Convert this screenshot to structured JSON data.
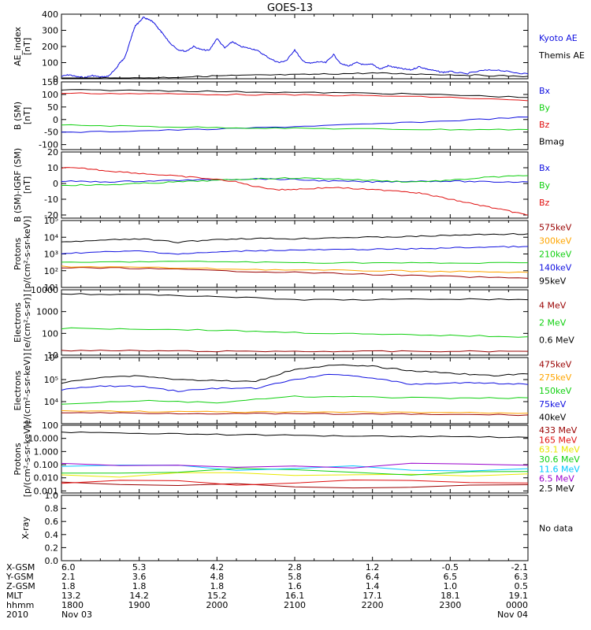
{
  "title": "GOES-13",
  "colors": {
    "black": "#000000",
    "blue": "#1010e0",
    "red": "#e01010",
    "green": "#10d010",
    "orange": "#ffa500",
    "dark_red": "#990000",
    "magenta": "#9900cc",
    "cyan": "#00c8ff",
    "yellow": "#e8e800"
  },
  "x_axis": {
    "start": "1800",
    "end": "0000",
    "tick_rows": [
      {
        "label": "X-GSM",
        "values": [
          "6.0",
          "5.3",
          "4.2",
          "2.8",
          "1.2",
          "-0.5",
          "-2.1"
        ]
      },
      {
        "label": "Y-GSM",
        "values": [
          "2.1",
          "3.6",
          "4.8",
          "5.8",
          "6.4",
          "6.5",
          "6.3"
        ]
      },
      {
        "label": "Z-GSM",
        "values": [
          "1.8",
          "1.8",
          "1.8",
          "1.6",
          "1.4",
          "1.0",
          "0.5"
        ]
      },
      {
        "label": "MLT",
        "values": [
          "13.2",
          "14.2",
          "15.2",
          "16.1",
          "17.1",
          "18.1",
          "19.1"
        ]
      },
      {
        "label": "hhmm",
        "values": [
          "1800",
          "1900",
          "2000",
          "2100",
          "2200",
          "2300",
          "0000"
        ]
      },
      {
        "label": "2010",
        "values": [
          "Nov 03",
          "",
          "",
          "",
          "",
          "",
          "Nov 04"
        ]
      }
    ]
  },
  "chart_data": [
    {
      "type": "line",
      "ylabel": [
        "AE_index",
        "[nT]"
      ],
      "ylim": [
        0,
        400
      ],
      "yticks": [
        0,
        100,
        200,
        300,
        400
      ],
      "ytick_labels": [
        "0",
        "100",
        "200",
        "300",
        "400"
      ],
      "series": [
        {
          "name": "Kyoto AE",
          "color": "blue",
          "x": [
            0,
            0.1,
            0.2,
            0.3,
            0.4,
            0.5,
            0.6,
            0.7,
            0.75,
            0.8,
            0.85,
            0.9,
            0.95,
            1.0,
            1.05,
            1.1,
            1.15,
            1.2,
            1.25,
            1.3,
            1.35,
            1.4,
            1.5,
            1.6,
            1.7,
            1.8,
            1.9,
            2.0,
            2.1,
            2.2,
            2.3,
            2.4,
            2.5,
            2.6,
            2.7,
            2.8,
            2.9,
            3.0,
            3.1,
            3.2,
            3.3,
            3.4,
            3.5,
            3.6,
            3.7,
            3.8,
            3.9,
            4.0,
            4.1,
            4.2,
            4.3,
            4.4,
            4.5,
            4.6,
            4.7,
            4.8,
            4.9,
            5.0,
            5.2,
            5.4,
            5.6,
            5.8,
            6.0
          ],
          "y": [
            15,
            25,
            12,
            8,
            20,
            10,
            15,
            60,
            100,
            120,
            180,
            260,
            330,
            350,
            380,
            370,
            360,
            340,
            310,
            280,
            250,
            220,
            180,
            170,
            200,
            180,
            175,
            250,
            190,
            230,
            200,
            190,
            180,
            150,
            120,
            100,
            115,
            180,
            110,
            95,
            105,
            100,
            150,
            90,
            80,
            100,
            85,
            90,
            60,
            80,
            70,
            60,
            55,
            75,
            60,
            50,
            40,
            45,
            30,
            50,
            55,
            40,
            30
          ]
        },
        {
          "name": "Themis AE",
          "color": "black",
          "x": [
            0,
            0.5,
            1.0,
            1.5,
            2.0,
            2.5,
            3.0,
            3.5,
            4.0,
            4.5,
            5.0,
            5.5,
            6.0
          ],
          "y": [
            2,
            3,
            5,
            10,
            18,
            22,
            25,
            30,
            35,
            30,
            25,
            20,
            15
          ]
        }
      ]
    },
    {
      "type": "line",
      "ylabel": [
        "B (SM)",
        "[nT]"
      ],
      "ylim": [
        -120,
        150
      ],
      "yticks": [
        -100,
        -50,
        0,
        50,
        100,
        150
      ],
      "ytick_labels": [
        "-100",
        "-50",
        "0",
        "50",
        "100",
        "150"
      ],
      "series": [
        {
          "name": "Bx",
          "color": "blue",
          "x": [
            0,
            1,
            2,
            3,
            4,
            5,
            6
          ],
          "y": [
            -52,
            -45,
            -38,
            -28,
            -18,
            -5,
            10
          ]
        },
        {
          "name": "By",
          "color": "green",
          "x": [
            0,
            1,
            2,
            3,
            4,
            5,
            6
          ],
          "y": [
            -22,
            -27,
            -32,
            -35,
            -38,
            -40,
            -40
          ]
        },
        {
          "name": "Bz",
          "color": "red",
          "x": [
            0,
            1,
            2,
            3,
            4,
            5,
            6
          ],
          "y": [
            105,
            103,
            100,
            98,
            95,
            88,
            75
          ]
        },
        {
          "name": "Bmag",
          "color": "black",
          "x": [
            0,
            1,
            2,
            3,
            4,
            5,
            6
          ],
          "y": [
            118,
            116,
            112,
            108,
            105,
            98,
            88
          ]
        }
      ]
    },
    {
      "type": "line",
      "ylabel": [
        "B (SM)-IGRF (SM)",
        "[nT]"
      ],
      "ylim": [
        -22,
        20
      ],
      "yticks": [
        -20,
        -10,
        0,
        10,
        20
      ],
      "ytick_labels": [
        "-20",
        "-10",
        "0",
        "10",
        "20"
      ],
      "series": [
        {
          "name": "Bx",
          "color": "blue",
          "x": [
            0,
            0.5,
            1.0,
            1.5,
            2.0,
            2.5,
            3.0,
            3.5,
            4.0,
            4.5,
            5.0,
            5.5,
            6.0
          ],
          "y": [
            1.5,
            1,
            1.5,
            2,
            2.5,
            3,
            2.5,
            1.5,
            1,
            1.5,
            1.5,
            1,
            1
          ]
        },
        {
          "name": "By",
          "color": "green",
          "x": [
            0,
            0.5,
            1.0,
            1.5,
            2.0,
            2.5,
            3.0,
            3.5,
            4.0,
            4.5,
            5.0,
            5.5,
            6.0
          ],
          "y": [
            -1,
            -1,
            0,
            1,
            2,
            3,
            3.5,
            3,
            2,
            1,
            2,
            4,
            5
          ]
        },
        {
          "name": "Bz",
          "color": "red",
          "x": [
            0,
            0.3,
            0.6,
            1.0,
            1.4,
            1.8,
            2.2,
            2.5,
            2.8,
            3.1,
            3.5,
            4.0,
            4.3,
            4.6,
            4.9,
            5.2,
            5.5,
            5.8,
            6.0
          ],
          "y": [
            10,
            9.5,
            8,
            6.5,
            5,
            3.5,
            1.5,
            -2,
            -4,
            -3.5,
            -2.5,
            -4,
            -4.5,
            -6,
            -9,
            -12,
            -15,
            -18,
            -20
          ]
        }
      ]
    },
    {
      "type": "line",
      "yscale": "log",
      "ylabel": [
        "Protons",
        "[p/(cm²-s-sr-keV)]"
      ],
      "ylim": [
        10,
        100000
      ],
      "yticks": [
        10,
        100,
        1000,
        10000,
        100000
      ],
      "ytick_labels": [
        "10¹",
        "10²",
        "10³",
        "10⁴",
        "10⁵"
      ],
      "series": [
        {
          "name": "575keV",
          "color": "dark_red",
          "x": [
            0,
            1,
            2,
            3,
            4,
            5,
            6
          ],
          "y": [
            150,
            140,
            100,
            80,
            60,
            45,
            35
          ]
        },
        {
          "name": "300keV",
          "color": "orange",
          "x": [
            0,
            1,
            2,
            3,
            4,
            5,
            6
          ],
          "y": [
            180,
            160,
            130,
            110,
            100,
            90,
            80
          ]
        },
        {
          "name": "210keV",
          "color": "green",
          "x": [
            0,
            1,
            2,
            3,
            4,
            5,
            6
          ],
          "y": [
            300,
            350,
            350,
            300,
            300,
            280,
            300
          ]
        },
        {
          "name": "140keV",
          "color": "blue",
          "x": [
            0,
            0.5,
            1.0,
            1.5,
            2.0,
            2.5,
            3.0,
            3.5,
            4.0,
            4.5,
            5.0,
            5.5,
            6.0
          ],
          "y": [
            1100,
            1300,
            1500,
            1000,
            1300,
            1600,
            1700,
            1800,
            1900,
            2000,
            2300,
            2600,
            2800
          ]
        },
        {
          "name": "95keV",
          "color": "black",
          "x": [
            0,
            0.5,
            1.0,
            1.5,
            2.0,
            2.5,
            3.0,
            3.5,
            4.0,
            4.5,
            5.0,
            5.5,
            6.0
          ],
          "y": [
            5000,
            6500,
            8000,
            5000,
            7500,
            8500,
            8000,
            9500,
            10000,
            11000,
            13000,
            15000,
            16000
          ]
        }
      ]
    },
    {
      "type": "line",
      "yscale": "log",
      "ylabel": [
        "Electrons",
        "[e/(cm²-s-sr)]"
      ],
      "ylim": [
        10,
        10000
      ],
      "yticks": [
        10,
        100,
        1000,
        10000
      ],
      "ytick_labels": [
        "10",
        "100",
        "1000",
        "10000"
      ],
      "series": [
        {
          "name": "4 MeV",
          "color": "dark_red",
          "x": [
            0,
            1,
            2,
            3,
            4,
            5,
            6
          ],
          "y": [
            16,
            16,
            15,
            15,
            15,
            15,
            15
          ]
        },
        {
          "name": "2 MeV",
          "color": "green",
          "x": [
            0,
            1,
            2,
            3,
            4,
            5,
            6
          ],
          "y": [
            170,
            160,
            140,
            110,
            90,
            80,
            70
          ]
        },
        {
          "name": "0.6 MeV",
          "color": "black",
          "x": [
            0,
            1,
            2,
            3,
            4,
            5,
            6
          ],
          "y": [
            6500,
            6000,
            5000,
            3500,
            3500,
            3800,
            3500
          ]
        }
      ]
    },
    {
      "type": "line",
      "yscale": "log",
      "ylabel": [
        "Electrons",
        "[e/(cm²-s-sr-keV)]"
      ],
      "ylim": [
        1000,
        1000000
      ],
      "yticks": [
        10000,
        100000,
        1000000
      ],
      "ytick_labels": [
        "10⁴",
        "10⁵",
        "10⁶"
      ],
      "series": [
        {
          "name": "475keV",
          "color": "dark_red",
          "x": [
            0,
            1,
            2,
            3,
            4,
            5,
            6
          ],
          "y": [
            3200,
            3000,
            2900,
            2800,
            2700,
            2600,
            2500
          ]
        },
        {
          "name": "275keV",
          "color": "orange",
          "x": [
            0,
            1,
            2,
            3,
            4,
            5,
            6
          ],
          "y": [
            3800,
            3600,
            3400,
            3300,
            3300,
            3200,
            3000
          ]
        },
        {
          "name": "150keV",
          "color": "green",
          "x": [
            0,
            1,
            2,
            3,
            4,
            5,
            6
          ],
          "y": [
            8000,
            11000,
            9000,
            17000,
            16000,
            14000,
            15000
          ]
        },
        {
          "name": "75keV",
          "color": "blue",
          "x": [
            0,
            0.5,
            1.0,
            1.5,
            2.0,
            2.5,
            3.0,
            3.5,
            4.0,
            4.5,
            5.0,
            5.5,
            6.0
          ],
          "y": [
            35000,
            50000,
            50000,
            30000,
            40000,
            40000,
            100000,
            180000,
            120000,
            60000,
            70000,
            70000,
            60000
          ]
        },
        {
          "name": "40keV",
          "color": "black",
          "x": [
            0,
            0.5,
            1.0,
            1.5,
            2.0,
            2.5,
            3.0,
            3.5,
            4.0,
            4.5,
            5.0,
            5.5,
            6.0
          ],
          "y": [
            70000,
            130000,
            150000,
            100000,
            90000,
            80000,
            300000,
            450000,
            400000,
            250000,
            200000,
            150000,
            180000
          ]
        }
      ]
    },
    {
      "type": "line",
      "yscale": "log",
      "ylabel": [
        "Protons",
        "[p/(cm²-s-sr-keV)]"
      ],
      "ylim": [
        0.0007,
        100
      ],
      "yticks": [
        0.001,
        0.01,
        0.1,
        1,
        10,
        100
      ],
      "ytick_labels": [
        "0.001",
        "0.010",
        "0.100",
        "1.000",
        "10.000",
        "100"
      ],
      "series": [
        {
          "name": "433 MeV",
          "color": "dark_red",
          "x": [
            0,
            6
          ],
          "y": [
            0.003,
            0.003
          ]
        },
        {
          "name": "165 MeV",
          "color": "red",
          "x": [
            0,
            6
          ],
          "y": [
            0.004,
            0.004
          ]
        },
        {
          "name": "63.1 MeV",
          "color": "yellow",
          "x": [
            0,
            6
          ],
          "y": [
            0.02,
            0.02
          ]
        },
        {
          "name": "30.6 MeV",
          "color": "green",
          "x": [
            0,
            6
          ],
          "y": [
            0.03,
            0.03
          ]
        },
        {
          "name": "11.6 MeV",
          "color": "cyan",
          "x": [
            0,
            6
          ],
          "y": [
            0.05,
            0.05
          ]
        },
        {
          "name": "6.5 MeV",
          "color": "magenta",
          "x": [
            0,
            6
          ],
          "y": [
            0.09,
            0.09
          ]
        },
        {
          "name": "2.5 MeV",
          "color": "black",
          "x": [
            0,
            1,
            2,
            3,
            4,
            5,
            6
          ],
          "y": [
            30,
            25,
            20,
            17,
            15,
            14,
            12
          ]
        }
      ]
    },
    {
      "type": "line",
      "ylabel": [
        "X-ray"
      ],
      "ylim": [
        0,
        1
      ],
      "yticks": [
        0,
        0.2,
        0.4,
        0.6,
        0.8,
        1.0
      ],
      "ytick_labels": [
        "0.0",
        "0.2",
        "0.4",
        "0.6",
        "0.8",
        "1.0"
      ],
      "series": [],
      "note": "No data"
    }
  ]
}
